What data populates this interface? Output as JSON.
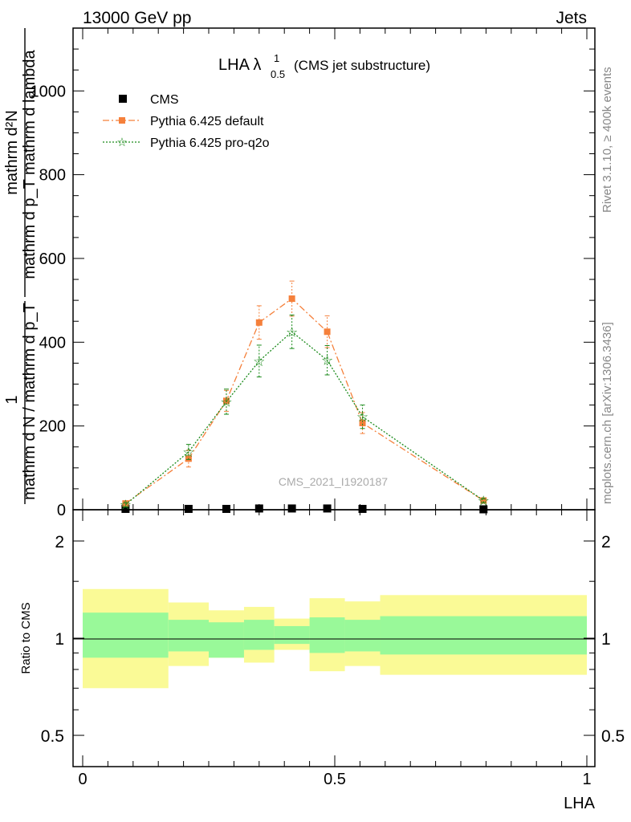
{
  "header": {
    "left": "13000 GeV pp",
    "right": "Jets"
  },
  "side_labels": {
    "rivet": "Rivet 3.1.10, ≥ 400k events",
    "mcplots": "mcplots.cern.ch [arXiv:1306.3436]"
  },
  "chart_data": [
    {
      "type": "line",
      "title": "LHA λ",
      "title_superscript": "1",
      "title_subscript": "0.5",
      "title_suffix": "(CMS jet substructure)",
      "watermark": "CMS_2021_I1920187",
      "ylabel_numerator": "mathrm d²N",
      "ylabel_denominator": "mathrm d p_T mathrm d lambda",
      "ylabel_prefactor_num": "1",
      "ylabel_prefactor_den": "mathrm d N / mathrm d p_T",
      "xlim": [
        0,
        1
      ],
      "ylim": [
        0,
        1150
      ],
      "y_ticks": [
        0,
        200,
        400,
        600,
        800,
        1000
      ],
      "legend_position": "top-left",
      "series": [
        {
          "name": "CMS",
          "color": "#000000",
          "marker": "square",
          "x": [
            0.085,
            0.21,
            0.285,
            0.35,
            0.415,
            0.485,
            0.555,
            0.795
          ],
          "y": [
            2,
            2,
            2,
            3,
            3,
            3,
            2,
            1
          ]
        },
        {
          "name": "Pythia 6.425 default",
          "color": "#f5803b",
          "marker": "square",
          "line": "dashdot",
          "x": [
            0.085,
            0.21,
            0.285,
            0.35,
            0.415,
            0.485,
            0.555,
            0.795
          ],
          "y": [
            15,
            122,
            260,
            447,
            504,
            425,
            207,
            22
          ],
          "err": [
            5,
            20,
            25,
            40,
            42,
            38,
            25,
            5
          ]
        },
        {
          "name": "Pythia 6.425 pro-q2o",
          "color": "#1a8a1a",
          "marker": "star",
          "line": "dotted",
          "x": [
            0.085,
            0.21,
            0.285,
            0.35,
            0.415,
            0.485,
            0.555,
            0.795
          ],
          "y": [
            12,
            138,
            258,
            355,
            425,
            357,
            222,
            22
          ],
          "err": [
            5,
            18,
            30,
            38,
            40,
            35,
            28,
            5
          ]
        }
      ]
    },
    {
      "type": "area",
      "ylabel": "Ratio to CMS",
      "xlabel": "LHA",
      "xlim": [
        0,
        1
      ],
      "ylim": [
        0.4,
        2.5
      ],
      "y_ticks": [
        0.5,
        1,
        2
      ],
      "x_ticks": [
        0,
        0.5,
        1
      ],
      "bands": {
        "edges": [
          0.0,
          0.17,
          0.25,
          0.32,
          0.38,
          0.45,
          0.52,
          0.59,
          1.0
        ],
        "inner_low": [
          0.87,
          0.91,
          0.87,
          0.92,
          0.96,
          0.9,
          0.91,
          0.89
        ],
        "inner_high": [
          1.2,
          1.14,
          1.12,
          1.14,
          1.09,
          1.16,
          1.14,
          1.17
        ],
        "outer_low": [
          0.7,
          0.82,
          0.87,
          0.84,
          0.92,
          0.79,
          0.82,
          0.77
        ],
        "outer_high": [
          1.42,
          1.29,
          1.22,
          1.25,
          1.15,
          1.33,
          1.3,
          1.36
        ],
        "inner_color": "#99f999",
        "outer_color": "#fafa96"
      }
    }
  ]
}
